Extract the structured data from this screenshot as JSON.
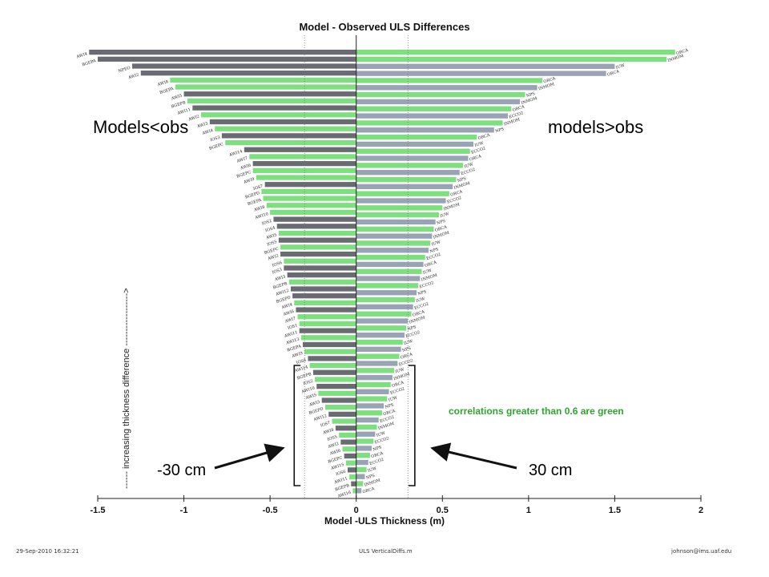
{
  "chart_data": {
    "type": "bar",
    "orientation": "horizontal",
    "title": "Model - Observed ULS Differences",
    "xlabel": "Model -ULS Thickness (m)",
    "ylabel": "------ increasing thickness difference ------------------>",
    "xlim": [
      -1.5,
      2
    ],
    "xticks": [
      "-1.5",
      "-1",
      "-0.5",
      "0",
      "0.5",
      "1",
      "1.5",
      "2"
    ],
    "reference_lines": [
      -0.3,
      0.3
    ],
    "colors": {
      "high_correlation": "#7ddf7d",
      "neg_low": "#6a6a72",
      "pos_low": "#9aa3b5"
    },
    "negative_bars": [
      {
        "label": "AWI4",
        "value": -1.55,
        "green": false
      },
      {
        "label": "BGEPA",
        "value": -1.5,
        "green": false
      },
      {
        "label": "NPEO",
        "value": -1.3,
        "green": false
      },
      {
        "label": "AWI2",
        "value": -1.25,
        "green": false
      },
      {
        "label": "AWI8",
        "value": -1.08,
        "green": true
      },
      {
        "label": "BGEPA",
        "value": -1.05,
        "green": true
      },
      {
        "label": "AWI5",
        "value": -1.0,
        "green": false
      },
      {
        "label": "BGEPB",
        "value": -0.98,
        "green": true
      },
      {
        "label": "AWI11",
        "value": -0.95,
        "green": false
      },
      {
        "label": "AWI2",
        "value": -0.9,
        "green": true
      },
      {
        "label": "AWI3",
        "value": -0.85,
        "green": false
      },
      {
        "label": "AWI4",
        "value": -0.82,
        "green": true
      },
      {
        "label": "IOS3",
        "value": -0.78,
        "green": false
      },
      {
        "label": "BGEPC",
        "value": -0.76,
        "green": true
      },
      {
        "label": "AWI14",
        "value": -0.65,
        "green": false
      },
      {
        "label": "AWI7",
        "value": -0.62,
        "green": true
      },
      {
        "label": "AWI6",
        "value": -0.6,
        "green": false
      },
      {
        "label": "BGEPC",
        "value": -0.6,
        "green": true
      },
      {
        "label": "AWI9",
        "value": -0.58,
        "green": true
      },
      {
        "label": "IOS7",
        "value": -0.53,
        "green": false
      },
      {
        "label": "BGEPD",
        "value": -0.55,
        "green": true
      },
      {
        "label": "BGEPA",
        "value": -0.54,
        "green": true
      },
      {
        "label": "AWI8",
        "value": -0.52,
        "green": true
      },
      {
        "label": "AWI10",
        "value": -0.5,
        "green": true
      },
      {
        "label": "IOS2",
        "value": -0.48,
        "green": false
      },
      {
        "label": "IOS4",
        "value": -0.46,
        "green": false
      },
      {
        "label": "AWI5",
        "value": -0.45,
        "green": true
      },
      {
        "label": "IOS5",
        "value": -0.45,
        "green": false
      },
      {
        "label": "BGEPC",
        "value": -0.44,
        "green": true
      },
      {
        "label": "AWI2",
        "value": -0.44,
        "green": false
      },
      {
        "label": "IOS6",
        "value": -0.42,
        "green": true
      },
      {
        "label": "IOS3",
        "value": -0.42,
        "green": false
      },
      {
        "label": "AWI3",
        "value": -0.4,
        "green": false
      },
      {
        "label": "BGEPB",
        "value": -0.39,
        "green": true
      },
      {
        "label": "AWI12",
        "value": -0.38,
        "green": false
      },
      {
        "label": "BGEPD",
        "value": -0.37,
        "green": false
      },
      {
        "label": "AWI4",
        "value": -0.36,
        "green": true
      },
      {
        "label": "AWI6",
        "value": -0.35,
        "green": false
      },
      {
        "label": "AWI7",
        "value": -0.34,
        "green": true
      },
      {
        "label": "IOS1",
        "value": -0.33,
        "green": true
      },
      {
        "label": "AWI11",
        "value": -0.33,
        "green": false
      },
      {
        "label": "AWI13",
        "value": -0.32,
        "green": true
      },
      {
        "label": "BGEPA",
        "value": -0.31,
        "green": false
      },
      {
        "label": "AWI9",
        "value": -0.3,
        "green": true
      },
      {
        "label": "IOS8",
        "value": -0.28,
        "green": false
      },
      {
        "label": "AWI14",
        "value": -0.27,
        "green": true
      },
      {
        "label": "BGEPB",
        "value": -0.25,
        "green": false
      },
      {
        "label": "IOS2",
        "value": -0.24,
        "green": true
      },
      {
        "label": "AWI10",
        "value": -0.23,
        "green": false
      },
      {
        "label": "AWI5",
        "value": -0.22,
        "green": true
      },
      {
        "label": "AWI3",
        "value": -0.2,
        "green": false
      },
      {
        "label": "BGEPD",
        "value": -0.18,
        "green": true
      },
      {
        "label": "AWI12",
        "value": -0.16,
        "green": false
      },
      {
        "label": "IOS7",
        "value": -0.14,
        "green": true
      },
      {
        "label": "AWI8",
        "value": -0.12,
        "green": false
      },
      {
        "label": "IOS5",
        "value": -0.1,
        "green": true
      },
      {
        "label": "AWI2",
        "value": -0.09,
        "green": false
      },
      {
        "label": "AWI6",
        "value": -0.08,
        "green": true
      },
      {
        "label": "BGEPC",
        "value": -0.07,
        "green": false
      },
      {
        "label": "AWI15",
        "value": -0.06,
        "green": true
      },
      {
        "label": "IOS6",
        "value": -0.05,
        "green": false
      },
      {
        "label": "AWI11",
        "value": -0.04,
        "green": true
      },
      {
        "label": "BGEPB",
        "value": -0.03,
        "green": false
      },
      {
        "label": "AWI16",
        "value": -0.02,
        "green": true
      }
    ],
    "positive_bars": [
      {
        "label": "ORCA",
        "value": 1.85,
        "green": true
      },
      {
        "label": "INMOM",
        "value": 1.8,
        "green": true
      },
      {
        "label": "IUW",
        "value": 1.5,
        "green": false
      },
      {
        "label": "ORCA",
        "value": 1.45,
        "green": false
      },
      {
        "label": "ORCA",
        "value": 1.08,
        "green": true
      },
      {
        "label": "INMOM",
        "value": 1.05,
        "green": false
      },
      {
        "label": "NPS",
        "value": 0.98,
        "green": true
      },
      {
        "label": "INMOM",
        "value": 0.95,
        "green": false
      },
      {
        "label": "ORCA",
        "value": 0.9,
        "green": true
      },
      {
        "label": "ECCO2",
        "value": 0.88,
        "green": false
      },
      {
        "label": "INMOM",
        "value": 0.85,
        "green": true
      },
      {
        "label": "NPS",
        "value": 0.8,
        "green": false
      },
      {
        "label": "ORCA",
        "value": 0.7,
        "green": true
      },
      {
        "label": "IUW",
        "value": 0.68,
        "green": false
      },
      {
        "label": "ECCO2",
        "value": 0.66,
        "green": true
      },
      {
        "label": "ORCA",
        "value": 0.65,
        "green": false
      },
      {
        "label": "IUW",
        "value": 0.62,
        "green": true
      },
      {
        "label": "ECCO2",
        "value": 0.6,
        "green": false
      },
      {
        "label": "NPS",
        "value": 0.58,
        "green": true
      },
      {
        "label": "INMOM",
        "value": 0.56,
        "green": false
      },
      {
        "label": "ORCA",
        "value": 0.54,
        "green": true
      },
      {
        "label": "ECCO2",
        "value": 0.52,
        "green": false
      },
      {
        "label": "INMOM",
        "value": 0.5,
        "green": true
      },
      {
        "label": "IUW",
        "value": 0.48,
        "green": true
      },
      {
        "label": "NPS",
        "value": 0.46,
        "green": false
      },
      {
        "label": "ORCA",
        "value": 0.45,
        "green": true
      },
      {
        "label": "INMOM",
        "value": 0.44,
        "green": false
      },
      {
        "label": "IUW",
        "value": 0.43,
        "green": true
      },
      {
        "label": "NPS",
        "value": 0.42,
        "green": false
      },
      {
        "label": "ECCO2",
        "value": 0.4,
        "green": true
      },
      {
        "label": "ORCA",
        "value": 0.39,
        "green": false
      },
      {
        "label": "IUW",
        "value": 0.38,
        "green": true
      },
      {
        "label": "INMOM",
        "value": 0.37,
        "green": false
      },
      {
        "label": "ECCO2",
        "value": 0.36,
        "green": true
      },
      {
        "label": "NPS",
        "value": 0.35,
        "green": false
      },
      {
        "label": "IUW",
        "value": 0.34,
        "green": true
      },
      {
        "label": "ECCO2",
        "value": 0.33,
        "green": false
      },
      {
        "label": "ORCA",
        "value": 0.32,
        "green": true
      },
      {
        "label": "INMOM",
        "value": 0.3,
        "green": false
      },
      {
        "label": "NPS",
        "value": 0.29,
        "green": true
      },
      {
        "label": "ECCO2",
        "value": 0.28,
        "green": false
      },
      {
        "label": "IUW",
        "value": 0.27,
        "green": true
      },
      {
        "label": "NPS",
        "value": 0.26,
        "green": false
      },
      {
        "label": "ORCA",
        "value": 0.25,
        "green": true
      },
      {
        "label": "ECCO2",
        "value": 0.24,
        "green": false
      },
      {
        "label": "IUW",
        "value": 0.22,
        "green": true
      },
      {
        "label": "INMOM",
        "value": 0.21,
        "green": false
      },
      {
        "label": "ORCA",
        "value": 0.2,
        "green": true
      },
      {
        "label": "ECCO2",
        "value": 0.19,
        "green": false
      },
      {
        "label": "IUW",
        "value": 0.18,
        "green": true
      },
      {
        "label": "NPS",
        "value": 0.16,
        "green": false
      },
      {
        "label": "ORCA",
        "value": 0.15,
        "green": true
      },
      {
        "label": "ECCO2",
        "value": 0.13,
        "green": false
      },
      {
        "label": "INMOM",
        "value": 0.12,
        "green": true
      },
      {
        "label": "IUW",
        "value": 0.11,
        "green": false
      },
      {
        "label": "ECCO2",
        "value": 0.1,
        "green": true
      },
      {
        "label": "NPS",
        "value": 0.09,
        "green": false
      },
      {
        "label": "ORCA",
        "value": 0.08,
        "green": true
      },
      {
        "label": "ECCO2",
        "value": 0.07,
        "green": false
      },
      {
        "label": "IUW",
        "value": 0.06,
        "green": true
      },
      {
        "label": "NPS",
        "value": 0.05,
        "green": false
      },
      {
        "label": "INMOM",
        "value": 0.04,
        "green": true
      },
      {
        "label": "ORCA",
        "value": 0.03,
        "green": false
      }
    ]
  },
  "annotations": {
    "left": "Models<obs",
    "right": "models>obs",
    "correlation_note": "correlations greater than 0.6 are green",
    "neg_bracket_label": "-30 cm",
    "pos_bracket_label": "30 cm"
  },
  "footer": {
    "left": "29-Sep-2010 16:32:21",
    "center": "ULS VerticalDiffs.m",
    "right": "johnson@ims.uaf.edu"
  }
}
